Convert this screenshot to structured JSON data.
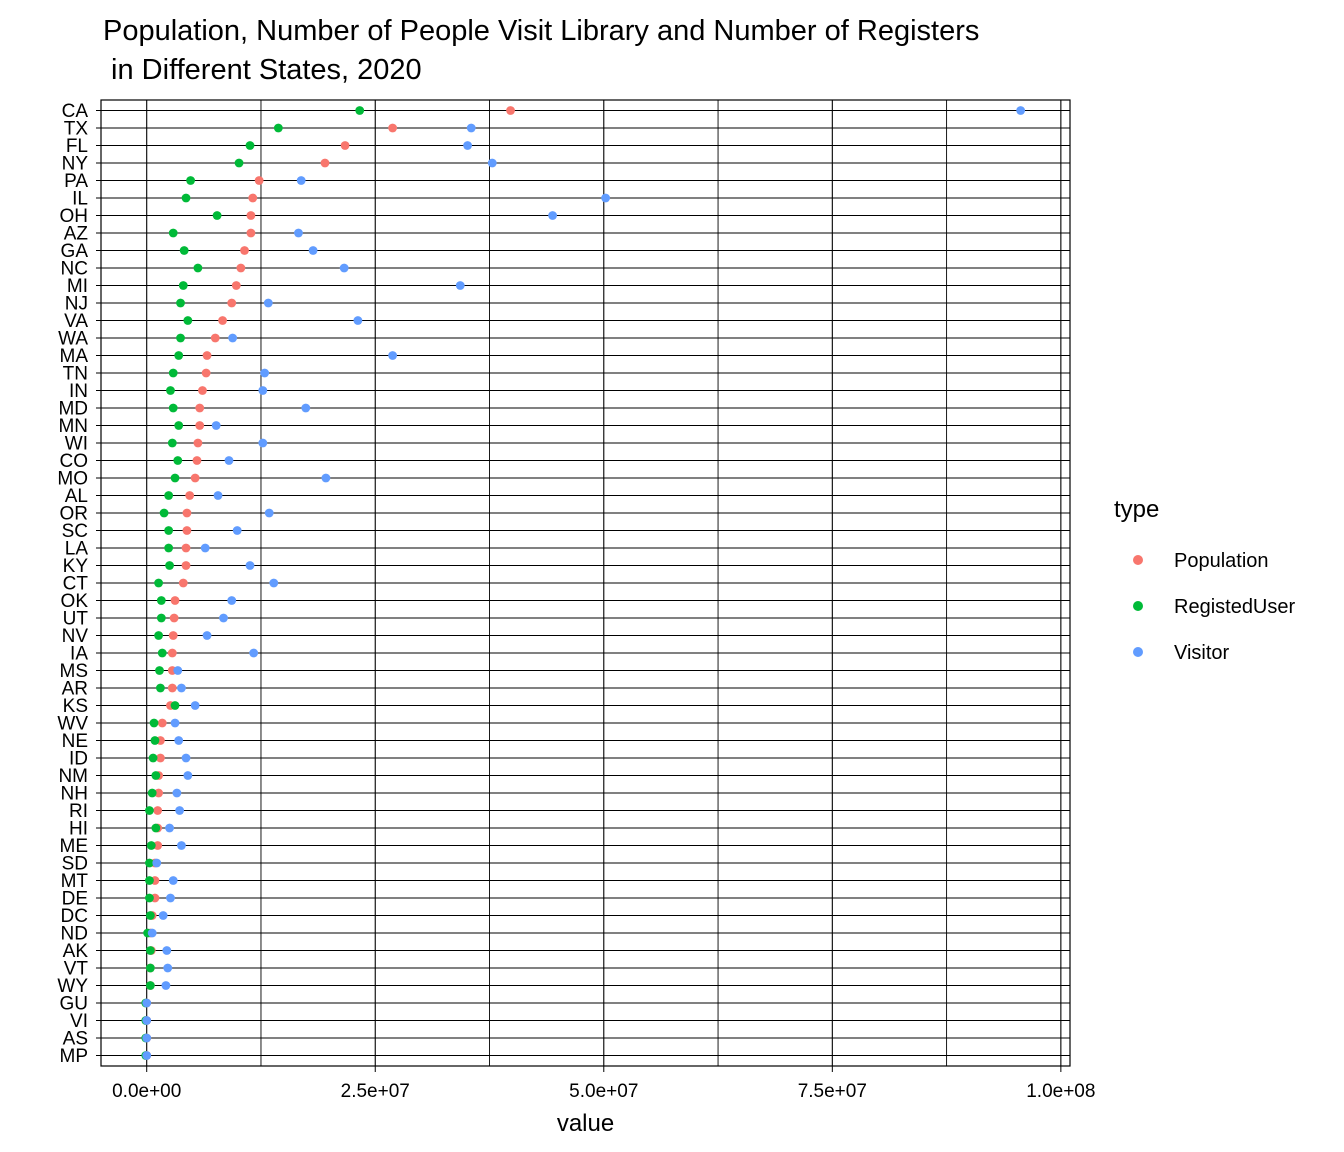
{
  "chart_data": {
    "type": "scatter",
    "title_lines": [
      "Population, Number of People Visit Library and Number of Registers",
      " in Different States, 2020"
    ],
    "xlabel": "value",
    "ylabel": "",
    "xlim": [
      -5000000,
      101000000
    ],
    "xticks": [
      0,
      25000000,
      50000000,
      75000000,
      100000000
    ],
    "xtick_labels": [
      "0.0e+00",
      "2.5e+07",
      "5.0e+07",
      "7.5e+07",
      "1.0e+08"
    ],
    "grid": true,
    "legend": {
      "title": "type",
      "placement": "right"
    },
    "categories": [
      "CA",
      "TX",
      "FL",
      "NY",
      "PA",
      "IL",
      "OH",
      "AZ",
      "GA",
      "NC",
      "MI",
      "NJ",
      "VA",
      "WA",
      "MA",
      "TN",
      "IN",
      "MD",
      "MN",
      "WI",
      "CO",
      "MO",
      "AL",
      "OR",
      "SC",
      "LA",
      "KY",
      "CT",
      "OK",
      "UT",
      "NV",
      "IA",
      "MS",
      "AR",
      "KS",
      "WV",
      "NE",
      "ID",
      "NM",
      "NH",
      "RI",
      "HI",
      "ME",
      "SD",
      "MT",
      "DE",
      "DC",
      "ND",
      "AK",
      "VT",
      "WY",
      "GU",
      "VI",
      "AS",
      "MP"
    ],
    "series": [
      {
        "name": "Population",
        "color": "#F8766D",
        "values": [
          39800000,
          26900000,
          21700000,
          19500000,
          12300000,
          11600000,
          11400000,
          11400000,
          10700000,
          10300000,
          9800000,
          9300000,
          8300000,
          7500000,
          6600000,
          6500000,
          6100000,
          5800000,
          5800000,
          5600000,
          5500000,
          5300000,
          4700000,
          4400000,
          4400000,
          4300000,
          4300000,
          4000000,
          3100000,
          3000000,
          2900000,
          2800000,
          2800000,
          2800000,
          2600000,
          1700000,
          1500000,
          1500000,
          1300000,
          1300000,
          1200000,
          1200000,
          1200000,
          900000,
          900000,
          900000,
          600000,
          400000,
          500000,
          400000,
          400000,
          0,
          0,
          0,
          0
        ]
      },
      {
        "name": "RegistedUser",
        "color": "#00BA38",
        "values": [
          23300000,
          14400000,
          11300000,
          10100000,
          4800000,
          4300000,
          7700000,
          2900000,
          4100000,
          5600000,
          4000000,
          3700000,
          4500000,
          3700000,
          3500000,
          2900000,
          2600000,
          2900000,
          3500000,
          2800000,
          3400000,
          3100000,
          2400000,
          1900000,
          2400000,
          2400000,
          2500000,
          1300000,
          1600000,
          1600000,
          1300000,
          1700000,
          1400000,
          1500000,
          3100000,
          800000,
          900000,
          700000,
          1000000,
          600000,
          300000,
          1000000,
          500000,
          300000,
          300000,
          300000,
          400000,
          100000,
          400000,
          400000,
          400000,
          -100000,
          -100000,
          -100000,
          -100000
        ]
      },
      {
        "name": "Visitor",
        "color": "#619CFF",
        "values": [
          95600000,
          35500000,
          35100000,
          37800000,
          16900000,
          50200000,
          44400000,
          16600000,
          18200000,
          21600000,
          34300000,
          13300000,
          23100000,
          9400000,
          26900000,
          12900000,
          12700000,
          17400000,
          7600000,
          12700000,
          9000000,
          19600000,
          7800000,
          13400000,
          9900000,
          6400000,
          11300000,
          13900000,
          9300000,
          8400000,
          6600000,
          11700000,
          3400000,
          3800000,
          5300000,
          3100000,
          3500000,
          4300000,
          4500000,
          3300000,
          3600000,
          2500000,
          3800000,
          1100000,
          2900000,
          2600000,
          1800000,
          600000,
          2200000,
          2300000,
          2100000,
          0,
          0,
          0,
          0
        ]
      }
    ]
  }
}
